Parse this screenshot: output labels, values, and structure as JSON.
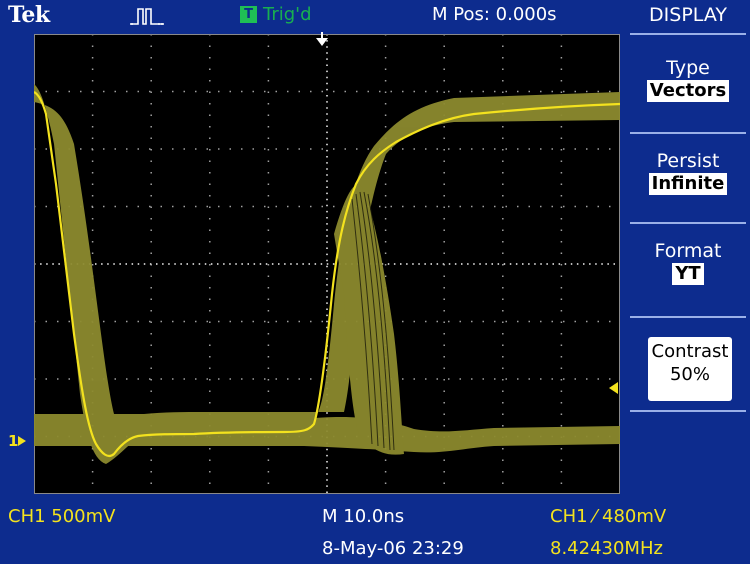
{
  "topbar": {
    "brand": "Tek",
    "acquisition_icon": "pulse-icon",
    "trigger_badge": "T",
    "trigger_state": "Trig'd",
    "horizontal_position": "M Pos: 0.000s"
  },
  "waveform": {
    "channel": "CH1",
    "ground_marker": "1",
    "trace_color": "#f3e21e",
    "persist_color": "#8c8a2e"
  },
  "menu": {
    "title": "DISPLAY",
    "items": [
      {
        "label": "Type",
        "value": "Vectors"
      },
      {
        "label": "Persist",
        "value": "Infinite"
      },
      {
        "label": "Format",
        "value": "YT"
      },
      {
        "label": "Contrast",
        "value": "50%"
      }
    ]
  },
  "readouts": {
    "ch1_scale": "CH1  500mV",
    "timebase": "M 10.0ns",
    "trigger": "CH1  ⁄  480mV",
    "datetime": "8-May-06 23:29",
    "frequency": "8.42430MHz"
  },
  "colors": {
    "background": "#0d2c8e",
    "trigger_green": "#18b050",
    "yellow": "#f3e21e"
  }
}
